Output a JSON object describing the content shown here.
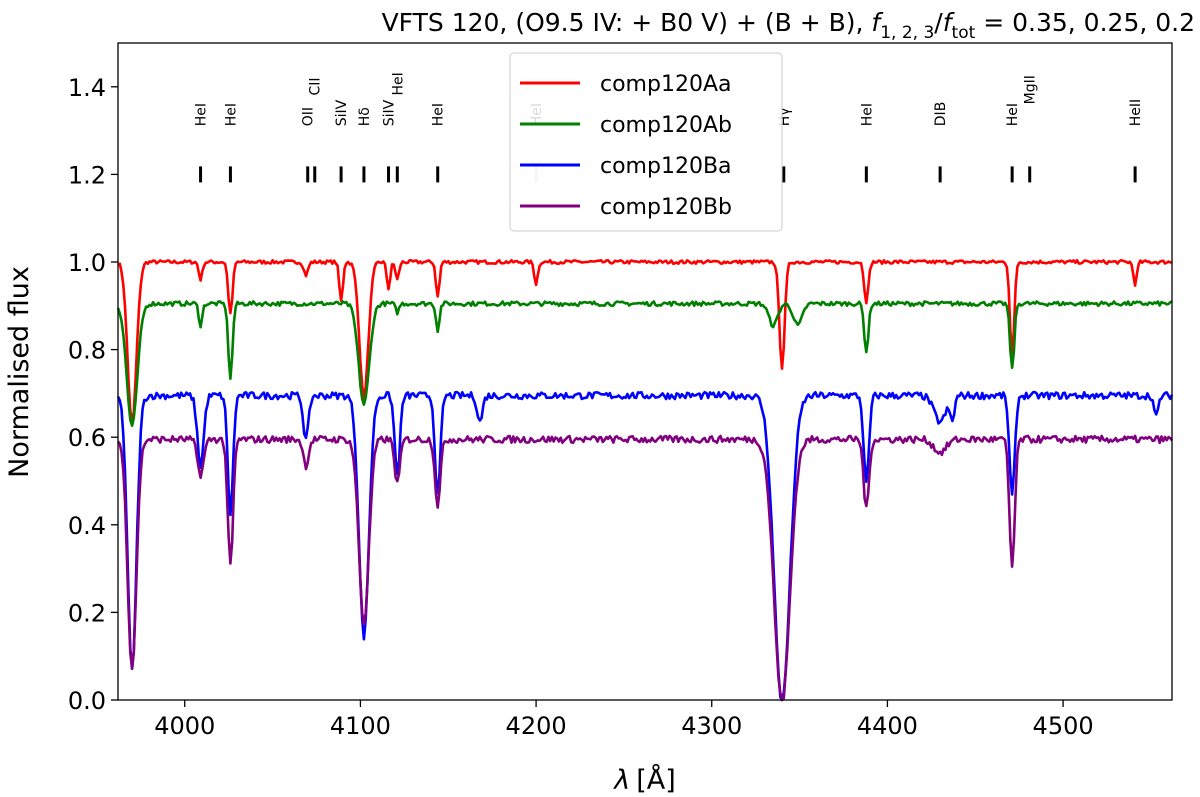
{
  "chart_data": {
    "type": "line",
    "title_parts": {
      "prefix": "VFTS 120, (O9.5 IV: + B0 V) + (B + B), ",
      "f": "f",
      "sub1": "1, 2, 3",
      "slash": "/",
      "sub2": "tot",
      "suffix": " = 0.35, 0.25, 0.2"
    },
    "xlabel_main": "λ",
    "xlabel_unit": "[Å]",
    "ylabel": "Normalised flux",
    "xlim": [
      3962,
      4562
    ],
    "ylim": [
      0.0,
      1.5
    ],
    "xticks": [
      4000,
      4100,
      4200,
      4300,
      4400,
      4500
    ],
    "yticks": [
      "0.0",
      "0.2",
      "0.4",
      "0.6",
      "0.8",
      "1.0",
      "1.2",
      "1.4"
    ],
    "grid": false,
    "legend_position": "top-center",
    "series": [
      {
        "name": "comp120Aa",
        "color": "#ff0000",
        "continuum": 1.0,
        "noise": 0.004,
        "lines": [
          [
            3970,
            0.37,
            2.5
          ],
          [
            4009,
            0.04,
            1.0
          ],
          [
            4026,
            0.12,
            1.2
          ],
          [
            4069,
            0.03,
            1.2
          ],
          [
            4089,
            0.09,
            1.0
          ],
          [
            4102,
            0.31,
            2.5
          ],
          [
            4116,
            0.06,
            1.0
          ],
          [
            4121,
            0.04,
            1.0
          ],
          [
            4144,
            0.08,
            1.0
          ],
          [
            4200,
            0.05,
            1.0
          ],
          [
            4340,
            0.24,
            1.5
          ],
          [
            4388,
            0.09,
            1.2
          ],
          [
            4471,
            0.22,
            1.2
          ],
          [
            4541,
            0.05,
            1.0
          ]
        ]
      },
      {
        "name": "comp120Ab",
        "color": "#008000",
        "continuum": 0.905,
        "noise": 0.005,
        "lines": [
          [
            3970,
            0.28,
            3.0
          ],
          [
            4009,
            0.05,
            1.0
          ],
          [
            4026,
            0.17,
            1.2
          ],
          [
            4102,
            0.23,
            3.0
          ],
          [
            4121,
            0.02,
            1.0
          ],
          [
            4144,
            0.06,
            1.0
          ],
          [
            4335,
            0.05,
            2.5
          ],
          [
            4349,
            0.05,
            2.5
          ],
          [
            4388,
            0.11,
            1.2
          ],
          [
            4471,
            0.15,
            1.2
          ]
        ]
      },
      {
        "name": "comp120Ba",
        "color": "#0000ff",
        "continuum": 0.695,
        "noise": 0.008,
        "lines": [
          [
            3970,
            0.63,
            2.5
          ],
          [
            4009,
            0.16,
            1.8
          ],
          [
            4026,
            0.27,
            1.5
          ],
          [
            4069,
            0.1,
            1.5
          ],
          [
            4102,
            0.55,
            2.8
          ],
          [
            4121,
            0.18,
            1.5
          ],
          [
            4144,
            0.23,
            1.5
          ],
          [
            4168,
            0.06,
            1.5
          ],
          [
            4340,
            0.7,
            4.5
          ],
          [
            4388,
            0.2,
            1.5
          ],
          [
            4430,
            0.06,
            3.5
          ],
          [
            4437,
            0.05,
            1.2
          ],
          [
            4471,
            0.23,
            1.5
          ],
          [
            4553,
            0.05,
            1.2
          ]
        ]
      },
      {
        "name": "comp120Bb",
        "color": "#800080",
        "continuum": 0.595,
        "noise": 0.008,
        "lines": [
          [
            3970,
            0.52,
            2.5
          ],
          [
            4009,
            0.08,
            1.8
          ],
          [
            4026,
            0.29,
            1.5
          ],
          [
            4069,
            0.06,
            1.5
          ],
          [
            4102,
            0.42,
            2.8
          ],
          [
            4121,
            0.1,
            1.5
          ],
          [
            4144,
            0.15,
            1.5
          ],
          [
            4340,
            0.6,
            4.5
          ],
          [
            4388,
            0.16,
            1.5
          ],
          [
            4430,
            0.03,
            3.5
          ],
          [
            4471,
            0.29,
            1.5
          ]
        ]
      }
    ],
    "line_markers": [
      {
        "label": "HeI",
        "x": 4009,
        "color": "#000000"
      },
      {
        "label": "HeI",
        "x": 4026,
        "color": "#000000"
      },
      {
        "label": "OII",
        "x": 4070,
        "color": "#000000"
      },
      {
        "label": "CII",
        "x": 4074,
        "color": "#000000"
      },
      {
        "label": "SiIV",
        "x": 4089,
        "color": "#000000"
      },
      {
        "label": "Hδ",
        "x": 4102,
        "color": "#000000"
      },
      {
        "label": "SiIV",
        "x": 4116,
        "color": "#000000"
      },
      {
        "label": "HeI",
        "x": 4121,
        "color": "#000000"
      },
      {
        "label": "HeI",
        "x": 4144,
        "color": "#000000"
      },
      {
        "label": "HeI",
        "x": 4200,
        "color": "#c0c0c0"
      },
      {
        "label": "Hγ",
        "x": 4341,
        "color": "#000000"
      },
      {
        "label": "HeI",
        "x": 4388,
        "color": "#000000"
      },
      {
        "label": "DIB",
        "x": 4430,
        "color": "#000000"
      },
      {
        "label": "HeI",
        "x": 4471,
        "color": "#000000"
      },
      {
        "label": "MgII",
        "x": 4481,
        "color": "#000000"
      },
      {
        "label": "HeII",
        "x": 4541,
        "color": "#000000"
      }
    ]
  }
}
